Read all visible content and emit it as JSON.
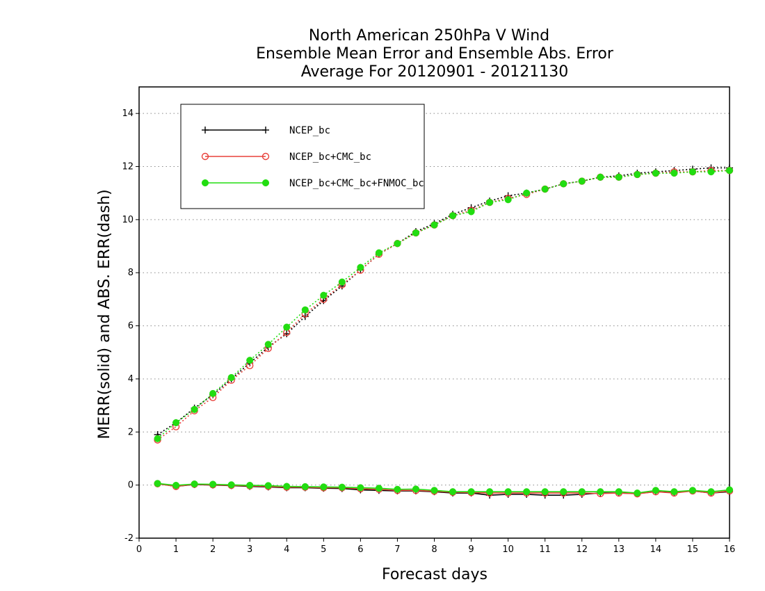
{
  "chart_data": {
    "type": "line",
    "title": [
      "North American 250hPa V Wind",
      "Ensemble Mean Error and Ensemble Abs. Error",
      "Average For 20120901 - 20121130"
    ],
    "xlabel": "Forecast days",
    "ylabel": "MERR(solid) and ABS. ERR(dash)",
    "xlim": [
      0,
      16
    ],
    "ylim": [
      -2,
      15
    ],
    "xticks": [
      "0",
      "1",
      "2",
      "3",
      "4",
      "5",
      "6",
      "7",
      "8",
      "9",
      "10",
      "11",
      "12",
      "13",
      "14",
      "15",
      "16"
    ],
    "yticks": [
      "-2",
      "0",
      "2",
      "4",
      "6",
      "8",
      "10",
      "12",
      "14"
    ],
    "grid": "horizontal dotted",
    "legend_position": "top-left",
    "x": [
      0.5,
      1.0,
      1.5,
      2.0,
      2.5,
      3.0,
      3.5,
      4.0,
      4.5,
      5.0,
      5.5,
      6.0,
      6.5,
      7.0,
      7.5,
      8.0,
      8.5,
      9.0,
      9.5,
      10.0,
      10.5,
      11.0,
      11.5,
      12.0,
      12.5,
      13.0,
      13.5,
      14.0,
      14.5,
      15.0,
      15.5,
      16.0
    ],
    "series": [
      {
        "name": "NCEP_bc",
        "color": "#000000",
        "marker": "plus",
        "merr": [
          0.05,
          -0.05,
          0.02,
          0.0,
          -0.02,
          -0.05,
          -0.07,
          -0.1,
          -0.1,
          -0.12,
          -0.13,
          -0.18,
          -0.2,
          -0.22,
          -0.22,
          -0.25,
          -0.3,
          -0.3,
          -0.38,
          -0.35,
          -0.35,
          -0.38,
          -0.38,
          -0.35,
          -0.3,
          -0.3,
          -0.32,
          -0.25,
          -0.28,
          -0.22,
          -0.3,
          -0.25
        ],
        "abs_err": [
          1.9,
          2.35,
          2.9,
          3.4,
          4.0,
          4.6,
          5.2,
          5.7,
          6.35,
          6.95,
          7.5,
          8.1,
          8.7,
          9.1,
          9.55,
          9.85,
          10.2,
          10.45,
          10.7,
          10.9,
          11.0,
          11.15,
          11.35,
          11.45,
          11.6,
          11.65,
          11.75,
          11.8,
          11.85,
          11.9,
          11.95,
          11.95
        ]
      },
      {
        "name": "NCEP_bc+CMC_bc",
        "color": "#e8403a",
        "marker": "open-circle",
        "merr": [
          0.05,
          -0.05,
          0.03,
          0.01,
          -0.01,
          -0.03,
          -0.05,
          -0.08,
          -0.08,
          -0.1,
          -0.1,
          -0.14,
          -0.16,
          -0.2,
          -0.2,
          -0.23,
          -0.27,
          -0.28,
          -0.3,
          -0.3,
          -0.3,
          -0.3,
          -0.3,
          -0.3,
          -0.32,
          -0.3,
          -0.33,
          -0.25,
          -0.3,
          -0.22,
          -0.3,
          -0.22
        ],
        "abs_err": [
          1.7,
          2.2,
          2.8,
          3.3,
          3.95,
          4.5,
          5.15,
          5.75,
          6.45,
          7.0,
          7.55,
          8.1,
          8.7,
          9.1,
          9.5,
          9.8,
          10.15,
          10.35,
          10.65,
          10.8,
          10.95,
          11.15,
          11.35,
          11.45,
          11.6,
          11.6,
          11.7,
          11.75,
          11.8,
          11.8,
          11.85,
          11.85
        ]
      },
      {
        "name": "NCEP_bc+CMC_bc+FNMOC_bc",
        "color": "#22dd11",
        "marker": "filled-circle",
        "merr": [
          0.06,
          -0.01,
          0.04,
          0.03,
          0.01,
          -0.01,
          -0.02,
          -0.05,
          -0.06,
          -0.07,
          -0.08,
          -0.1,
          -0.12,
          -0.16,
          -0.15,
          -0.2,
          -0.25,
          -0.25,
          -0.25,
          -0.25,
          -0.25,
          -0.25,
          -0.25,
          -0.25,
          -0.25,
          -0.25,
          -0.3,
          -0.2,
          -0.25,
          -0.2,
          -0.25,
          -0.18
        ],
        "abs_err": [
          1.75,
          2.35,
          2.85,
          3.45,
          4.05,
          4.7,
          5.3,
          5.95,
          6.6,
          7.15,
          7.65,
          8.2,
          8.75,
          9.1,
          9.5,
          9.8,
          10.15,
          10.3,
          10.65,
          10.75,
          11.0,
          11.15,
          11.35,
          11.45,
          11.6,
          11.6,
          11.7,
          11.75,
          11.75,
          11.8,
          11.8,
          11.85
        ]
      }
    ]
  }
}
